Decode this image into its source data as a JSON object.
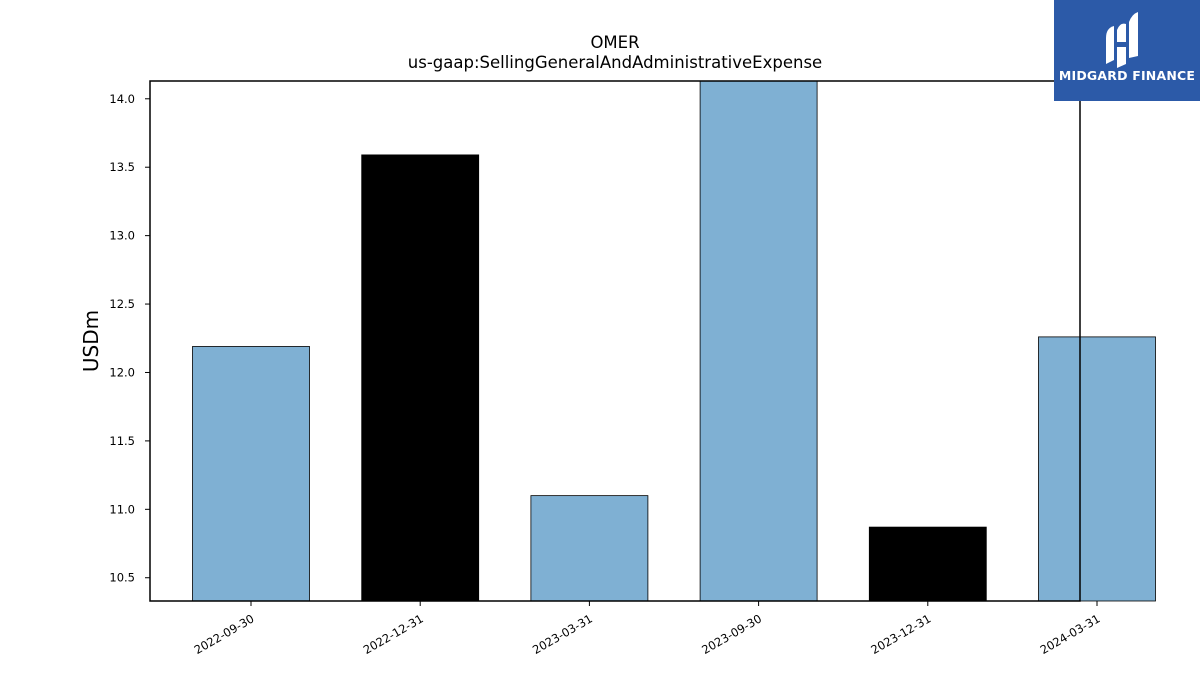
{
  "chart_data": {
    "type": "bar",
    "title": "OMER",
    "subtitle": "us-gaap:SellingGeneralAndAdministrativeExpense",
    "xlabel": "",
    "ylabel": "USDm",
    "categories": [
      "2022-09-30",
      "2022-12-31",
      "2023-03-31",
      "2023-09-30",
      "2023-12-31",
      "2024-03-31"
    ],
    "values": [
      12.19,
      13.59,
      11.1,
      14.14,
      10.87,
      12.26
    ],
    "bar_colors": [
      "#7fb0d3",
      "#000000",
      "#7fb0d3",
      "#7fb0d3",
      "#000000",
      "#7fb0d3"
    ],
    "ylim": [
      10.33,
      14.13
    ],
    "yticks": [
      "10.5",
      "11.0",
      "11.5",
      "12.0",
      "12.5",
      "13.0",
      "13.5",
      "14.0"
    ],
    "grid": false,
    "legend": "none"
  },
  "logo": {
    "text": "MIDGARD FINANCE",
    "background": "#2c5aa8",
    "icon": "midgard-finance-logo-icon"
  }
}
